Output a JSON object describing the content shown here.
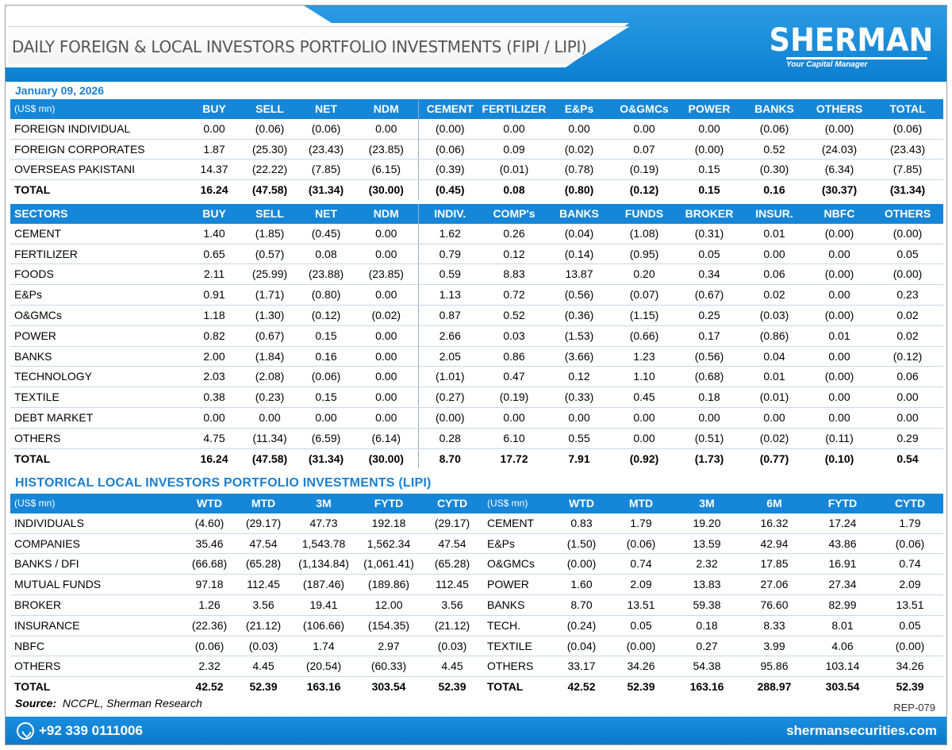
{
  "header": {
    "title": "DAILY FOREIGN & LOCAL INVESTORS PORTFOLIO INVESTMENTS (FIPI / LIPI)",
    "logo_name": "SHERMAN",
    "logo_tagline": "Your Capital Manager",
    "brand_color": "#1686d8"
  },
  "date": "January 09, 2026",
  "fipi": {
    "columns": [
      "(US$ mn)",
      "BUY",
      "SELL",
      "NET",
      "NDM",
      "CEMENT",
      "FERTILIZER",
      "E&Ps",
      "O&GMCs",
      "POWER",
      "BANKS",
      "OTHERS",
      "TOTAL"
    ],
    "rows": [
      [
        "FOREIGN INDIVIDUAL",
        "0.00",
        "(0.06)",
        "(0.06)",
        "0.00",
        "(0.00)",
        "0.00",
        "0.00",
        "0.00",
        "0.00",
        "(0.06)",
        "(0.00)",
        "(0.06)"
      ],
      [
        "FOREIGN CORPORATES",
        "1.87",
        "(25.30)",
        "(23.43)",
        "(23.85)",
        "(0.06)",
        "0.09",
        "(0.02)",
        "0.07",
        "(0.00)",
        "0.52",
        "(24.03)",
        "(23.43)"
      ],
      [
        "OVERSEAS PAKISTANI",
        "14.37",
        "(22.22)",
        "(7.85)",
        "(6.15)",
        "(0.39)",
        "(0.01)",
        "(0.78)",
        "(0.19)",
        "0.15",
        "(0.30)",
        "(6.34)",
        "(7.85)"
      ]
    ],
    "total": [
      "TOTAL",
      "16.24",
      "(47.58)",
      "(31.34)",
      "(30.00)",
      "(0.45)",
      "0.08",
      "(0.80)",
      "(0.12)",
      "0.15",
      "0.16",
      "(30.37)",
      "(31.34)"
    ]
  },
  "sectors": {
    "columns": [
      "SECTORS",
      "BUY",
      "SELL",
      "NET",
      "NDM",
      "INDIV.",
      "COMP's",
      "BANKS",
      "FUNDS",
      "BROKER",
      "INSUR.",
      "NBFC",
      "OTHERS"
    ],
    "rows": [
      [
        "CEMENT",
        "1.40",
        "(1.85)",
        "(0.45)",
        "0.00",
        "1.62",
        "0.26",
        "(0.04)",
        "(1.08)",
        "(0.31)",
        "0.01",
        "(0.00)",
        "(0.00)"
      ],
      [
        "FERTILIZER",
        "0.65",
        "(0.57)",
        "0.08",
        "0.00",
        "0.79",
        "0.12",
        "(0.14)",
        "(0.95)",
        "0.05",
        "0.00",
        "0.00",
        "0.05"
      ],
      [
        "FOODS",
        "2.11",
        "(25.99)",
        "(23.88)",
        "(23.85)",
        "0.59",
        "8.83",
        "13.87",
        "0.20",
        "0.34",
        "0.06",
        "(0.00)",
        "(0.00)"
      ],
      [
        "E&Ps",
        "0.91",
        "(1.71)",
        "(0.80)",
        "0.00",
        "1.13",
        "0.72",
        "(0.56)",
        "(0.07)",
        "(0.67)",
        "0.02",
        "0.00",
        "0.23"
      ],
      [
        "O&GMCs",
        "1.18",
        "(1.30)",
        "(0.12)",
        "(0.02)",
        "0.87",
        "0.52",
        "(0.36)",
        "(1.15)",
        "0.25",
        "(0.03)",
        "(0.00)",
        "0.02"
      ],
      [
        "POWER",
        "0.82",
        "(0.67)",
        "0.15",
        "0.00",
        "2.66",
        "0.03",
        "(1.53)",
        "(0.66)",
        "0.17",
        "(0.86)",
        "0.01",
        "0.02"
      ],
      [
        "BANKS",
        "2.00",
        "(1.84)",
        "0.16",
        "0.00",
        "2.05",
        "0.86",
        "(3.66)",
        "1.23",
        "(0.56)",
        "0.04",
        "0.00",
        "(0.12)"
      ],
      [
        "TECHNOLOGY",
        "2.03",
        "(2.08)",
        "(0.06)",
        "0.00",
        "(1.01)",
        "0.47",
        "0.12",
        "1.10",
        "(0.68)",
        "0.01",
        "(0.00)",
        "0.06"
      ],
      [
        "TEXTILE",
        "0.38",
        "(0.23)",
        "0.15",
        "0.00",
        "(0.27)",
        "(0.19)",
        "(0.33)",
        "0.45",
        "0.18",
        "(0.01)",
        "0.00",
        "0.00"
      ],
      [
        "DEBT MARKET",
        "0.00",
        "0.00",
        "0.00",
        "0.00",
        "(0.00)",
        "0.00",
        "0.00",
        "0.00",
        "0.00",
        "0.00",
        "0.00",
        "0.00"
      ],
      [
        "OTHERS",
        "4.75",
        "(11.34)",
        "(6.59)",
        "(6.14)",
        "0.28",
        "6.10",
        "0.55",
        "0.00",
        "(0.51)",
        "(0.02)",
        "(0.11)",
        "0.29"
      ]
    ],
    "total": [
      "TOTAL",
      "16.24",
      "(47.58)",
      "(31.34)",
      "(30.00)",
      "8.70",
      "17.72",
      "7.91",
      "(0.92)",
      "(1.73)",
      "(0.77)",
      "(0.10)",
      "0.54"
    ]
  },
  "historical": {
    "title": "HISTORICAL  LOCAL INVESTORS PORTFOLIO INVESTMENTS (LIPI)",
    "left": {
      "columns": [
        "(US$ mn)",
        "WTD",
        "MTD",
        "3M",
        "FYTD",
        "CYTD"
      ],
      "rows": [
        [
          "INDIVIDUALS",
          "(4.60)",
          "(29.17)",
          "47.73",
          "192.18",
          "(29.17)"
        ],
        [
          "COMPANIES",
          "35.46",
          "47.54",
          "1,543.78",
          "1,562.34",
          "47.54"
        ],
        [
          "BANKS / DFI",
          "(66.68)",
          "(65.28)",
          "(1,134.84)",
          "(1,061.41)",
          "(65.28)"
        ],
        [
          "MUTUAL FUNDS",
          "97.18",
          "112.45",
          "(187.46)",
          "(189.86)",
          "112.45"
        ],
        [
          "BROKER",
          "1.26",
          "3.56",
          "19.41",
          "12.00",
          "3.56"
        ],
        [
          "INSURANCE",
          "(22.36)",
          "(21.12)",
          "(106.66)",
          "(154.35)",
          "(21.12)"
        ],
        [
          "NBFC",
          "(0.06)",
          "(0.03)",
          "1.74",
          "2.97",
          "(0.03)"
        ],
        [
          "OTHERS",
          "2.32",
          "4.45",
          "(20.54)",
          "(60.33)",
          "4.45"
        ]
      ],
      "total": [
        "TOTAL",
        "42.52",
        "52.39",
        "163.16",
        "303.54",
        "52.39"
      ]
    },
    "right": {
      "columns": [
        "(US$ mn)",
        "WTD",
        "MTD",
        "3M",
        "6M",
        "FYTD",
        "CYTD"
      ],
      "rows": [
        [
          "CEMENT",
          "0.83",
          "1.79",
          "19.20",
          "16.32",
          "17.24",
          "1.79"
        ],
        [
          "E&Ps",
          "(1.50)",
          "(0.06)",
          "13.59",
          "42.94",
          "43.86",
          "(0.06)"
        ],
        [
          "O&GMCs",
          "(0.00)",
          "0.74",
          "2.32",
          "17.85",
          "16.91",
          "0.74"
        ],
        [
          "POWER",
          "1.60",
          "2.09",
          "13.83",
          "27.06",
          "27.34",
          "2.09"
        ],
        [
          "BANKS",
          "8.70",
          "13.51",
          "59.38",
          "76.60",
          "82.99",
          "13.51"
        ],
        [
          "TECH.",
          "(0.24)",
          "0.05",
          "0.18",
          "8.33",
          "8.01",
          "0.05"
        ],
        [
          "TEXTILE",
          "(0.04)",
          "(0.00)",
          "0.27",
          "3.99",
          "4.06",
          "(0.00)"
        ],
        [
          "OTHERS",
          "33.17",
          "34.26",
          "54.38",
          "95.86",
          "103.14",
          "34.26"
        ]
      ],
      "total": [
        "TOTAL",
        "42.52",
        "52.39",
        "163.16",
        "288.97",
        "303.54",
        "52.39"
      ]
    }
  },
  "source_label": "Source:",
  "source_text": "NCCPL, Sherman Research",
  "report_code": "REP-079",
  "footer": {
    "phone": "+92 339 0111006",
    "phone_icon": "whatsapp-icon",
    "website": "shermansecurities.com"
  }
}
